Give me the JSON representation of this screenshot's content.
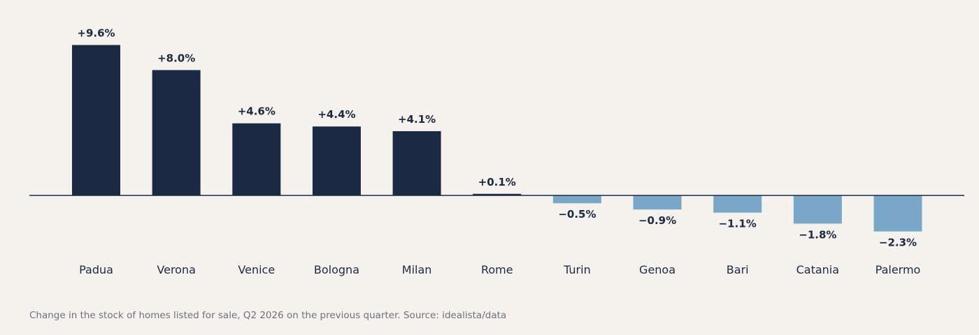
{
  "caption": "Change in the stock of homes listed for sale, Q2 2026 on the previous quarter. Source: idealista/data",
  "colors": {
    "background": "#f5f2ed",
    "positive": "#1b2a42",
    "negative": "#7aa7c7",
    "axis": "#1b2a42",
    "caption": "#6b7180"
  },
  "chart_data": {
    "type": "bar",
    "categories": [
      "Padua",
      "Verona",
      "Venice",
      "Bologna",
      "Milan",
      "Rome",
      "Turin",
      "Genoa",
      "Bari",
      "Catania",
      "Palermo"
    ],
    "values": [
      9.6,
      8.0,
      4.6,
      4.4,
      4.1,
      0.1,
      -0.5,
      -0.9,
      -1.1,
      -1.8,
      -2.3
    ],
    "labels": [
      "+9.6%",
      "+8.0%",
      "+4.6%",
      "+4.4%",
      "+4.1%",
      "+0.1%",
      "−0.5%",
      "−0.9%",
      "−1.1%",
      "−1.8%",
      "−2.3%"
    ],
    "ylim": [
      -2.3,
      9.6
    ],
    "grid": false,
    "legend": "none"
  }
}
